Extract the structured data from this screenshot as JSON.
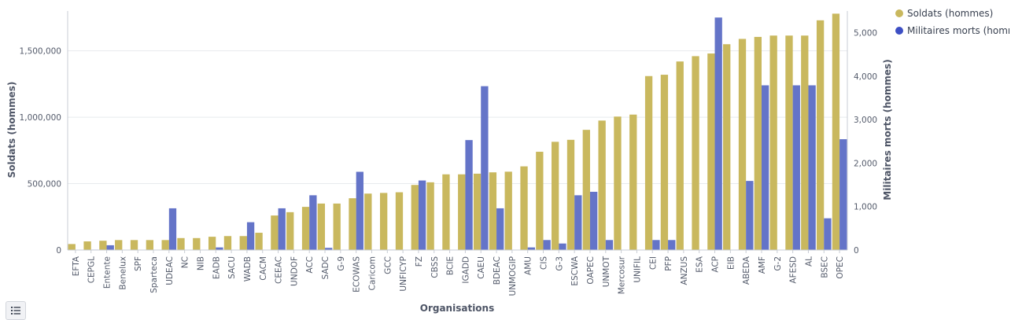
{
  "chart_data": {
    "type": "bar",
    "xlabel": "Organisations",
    "ylabel_left": "Soldats (hommes)",
    "ylabel_right": "Militaires morts (hommes)",
    "ylim_left": [
      0,
      1800000
    ],
    "ylim_right": [
      0,
      5500
    ],
    "yticks_left": [
      0,
      500000,
      1000000,
      1500000
    ],
    "yticks_left_labels": [
      "0",
      "500,000",
      "1,000,000",
      "1,500,000"
    ],
    "yticks_right": [
      0,
      1000,
      2000,
      3000,
      4000,
      5000
    ],
    "yticks_right_labels": [
      "0",
      "1,000",
      "2,000",
      "3,000",
      "4,000",
      "5,000"
    ],
    "grid": true,
    "legend_position": "top-right",
    "categories": [
      "EFTA",
      "CEPGL",
      "Entente",
      "Benelux",
      "SPF",
      "Sparteca",
      "UDEAC",
      "NC",
      "NIB",
      "EADB",
      "SACU",
      "WADB",
      "CACM",
      "CEEAC",
      "UNDOF",
      "ACC",
      "SADC",
      "G-9",
      "ECOWAS",
      "Caricom",
      "GCC",
      "UNFICYP",
      "FZ",
      "CBSS",
      "BCIE",
      "IGADD",
      "CAEU",
      "BDEAC",
      "UNMOGIP",
      "AMU",
      "CIS",
      "G-3",
      "ESCWA",
      "OAPEC",
      "UNMOT",
      "Mercosur",
      "UNIFIL",
      "CEI",
      "PFP",
      "ANZUS",
      "ESA",
      "ACP",
      "EIB",
      "ABEDA",
      "AMF",
      "G-2",
      "AFESD",
      "AL",
      "BSEC",
      "OPEC"
    ],
    "series": [
      {
        "name": "Soldats (hommes)",
        "color": "#c9b85e",
        "axis": "left",
        "values": [
          45000,
          65000,
          70000,
          75000,
          75000,
          75000,
          75000,
          90000,
          90000,
          100000,
          105000,
          105000,
          130000,
          260000,
          285000,
          325000,
          350000,
          350000,
          390000,
          425000,
          430000,
          435000,
          490000,
          510000,
          570000,
          570000,
          575000,
          585000,
          590000,
          630000,
          740000,
          815000,
          830000,
          905000,
          975000,
          1005000,
          1020000,
          1310000,
          1320000,
          1420000,
          1460000,
          1480000,
          1550000,
          1590000,
          1605000,
          1615000,
          1615000,
          1615000,
          1730000,
          1780000
        ]
      },
      {
        "name": "Militaires morts (hommes)",
        "color": "#6474c8",
        "axis": "right",
        "values": [
          0,
          10,
          110,
          0,
          0,
          0,
          960,
          0,
          0,
          60,
          0,
          640,
          0,
          960,
          0,
          1260,
          50,
          0,
          1800,
          0,
          10,
          0,
          1600,
          0,
          0,
          2530,
          3770,
          960,
          0,
          60,
          230,
          150,
          1260,
          1340,
          230,
          0,
          0,
          230,
          230,
          0,
          0,
          5350,
          0,
          1590,
          3790,
          0,
          3790,
          3790,
          730,
          2550
        ]
      }
    ]
  },
  "legend": {
    "items": [
      {
        "label": "Soldats (hommes)",
        "color": "#c9b85e"
      },
      {
        "label": "Militaires morts (hommes)",
        "color": "#3d4fc4"
      }
    ]
  },
  "controls": {
    "legend_toggle_icon": "list-icon"
  }
}
